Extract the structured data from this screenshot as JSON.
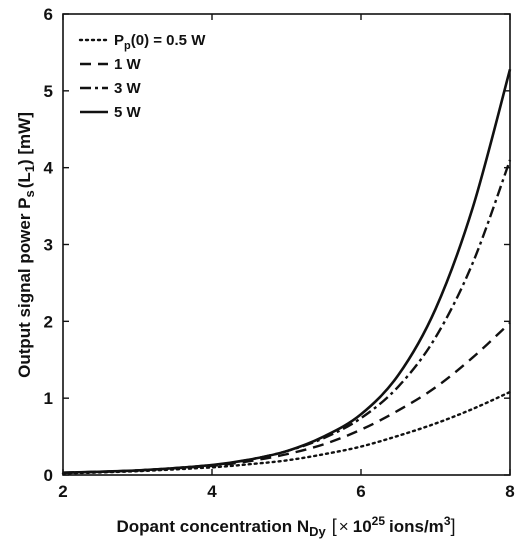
{
  "chart_data": {
    "type": "line",
    "xlabel": {
      "main": "Dopant concentration N",
      "sub": "Dy",
      "unit_open": "[",
      "times": "×",
      "base": "10",
      "exp": "25",
      "unit": "ions/m",
      "unit_exp": "3",
      "unit_close": "]"
    },
    "ylabel": {
      "main": "Output signal power P",
      "sub1": "s",
      "paren": "(L",
      "sub2": "1",
      "rest": ") [mW]"
    },
    "xlim": [
      2,
      8
    ],
    "ylim": [
      0,
      6
    ],
    "xticks": [
      2,
      4,
      6,
      8
    ],
    "yticks": [
      0,
      1,
      2,
      3,
      4,
      5,
      6
    ],
    "grid": false,
    "legend_position": "top-left",
    "legend_prefix": {
      "p": "P",
      "sub": "p",
      "arg": "(0) = "
    },
    "series": [
      {
        "name": "0.5 W",
        "style": "dotted",
        "x": [
          2,
          3,
          4,
          4.5,
          5,
          5.5,
          6,
          6.5,
          7,
          7.5,
          8
        ],
        "y": [
          0.02,
          0.05,
          0.1,
          0.14,
          0.19,
          0.27,
          0.37,
          0.51,
          0.67,
          0.86,
          1.08
        ]
      },
      {
        "name": "1 W",
        "style": "dashed",
        "x": [
          2,
          3,
          4,
          4.5,
          5,
          5.5,
          6,
          6.5,
          7,
          7.5,
          8
        ],
        "y": [
          0.03,
          0.06,
          0.12,
          0.18,
          0.27,
          0.4,
          0.59,
          0.84,
          1.14,
          1.53,
          1.98
        ]
      },
      {
        "name": "3 W",
        "style": "dashdot",
        "x": [
          2,
          3,
          4,
          4.5,
          5,
          5.5,
          6,
          6.5,
          7,
          7.5,
          8
        ],
        "y": [
          0.03,
          0.06,
          0.13,
          0.2,
          0.31,
          0.48,
          0.74,
          1.15,
          1.79,
          2.76,
          4.1
        ]
      },
      {
        "name": "5 W",
        "style": "solid",
        "x": [
          2,
          3,
          4,
          4.5,
          5,
          5.5,
          6,
          6.5,
          7,
          7.5,
          8
        ],
        "y": [
          0.03,
          0.06,
          0.13,
          0.2,
          0.31,
          0.5,
          0.79,
          1.3,
          2.16,
          3.48,
          5.28
        ]
      }
    ]
  }
}
